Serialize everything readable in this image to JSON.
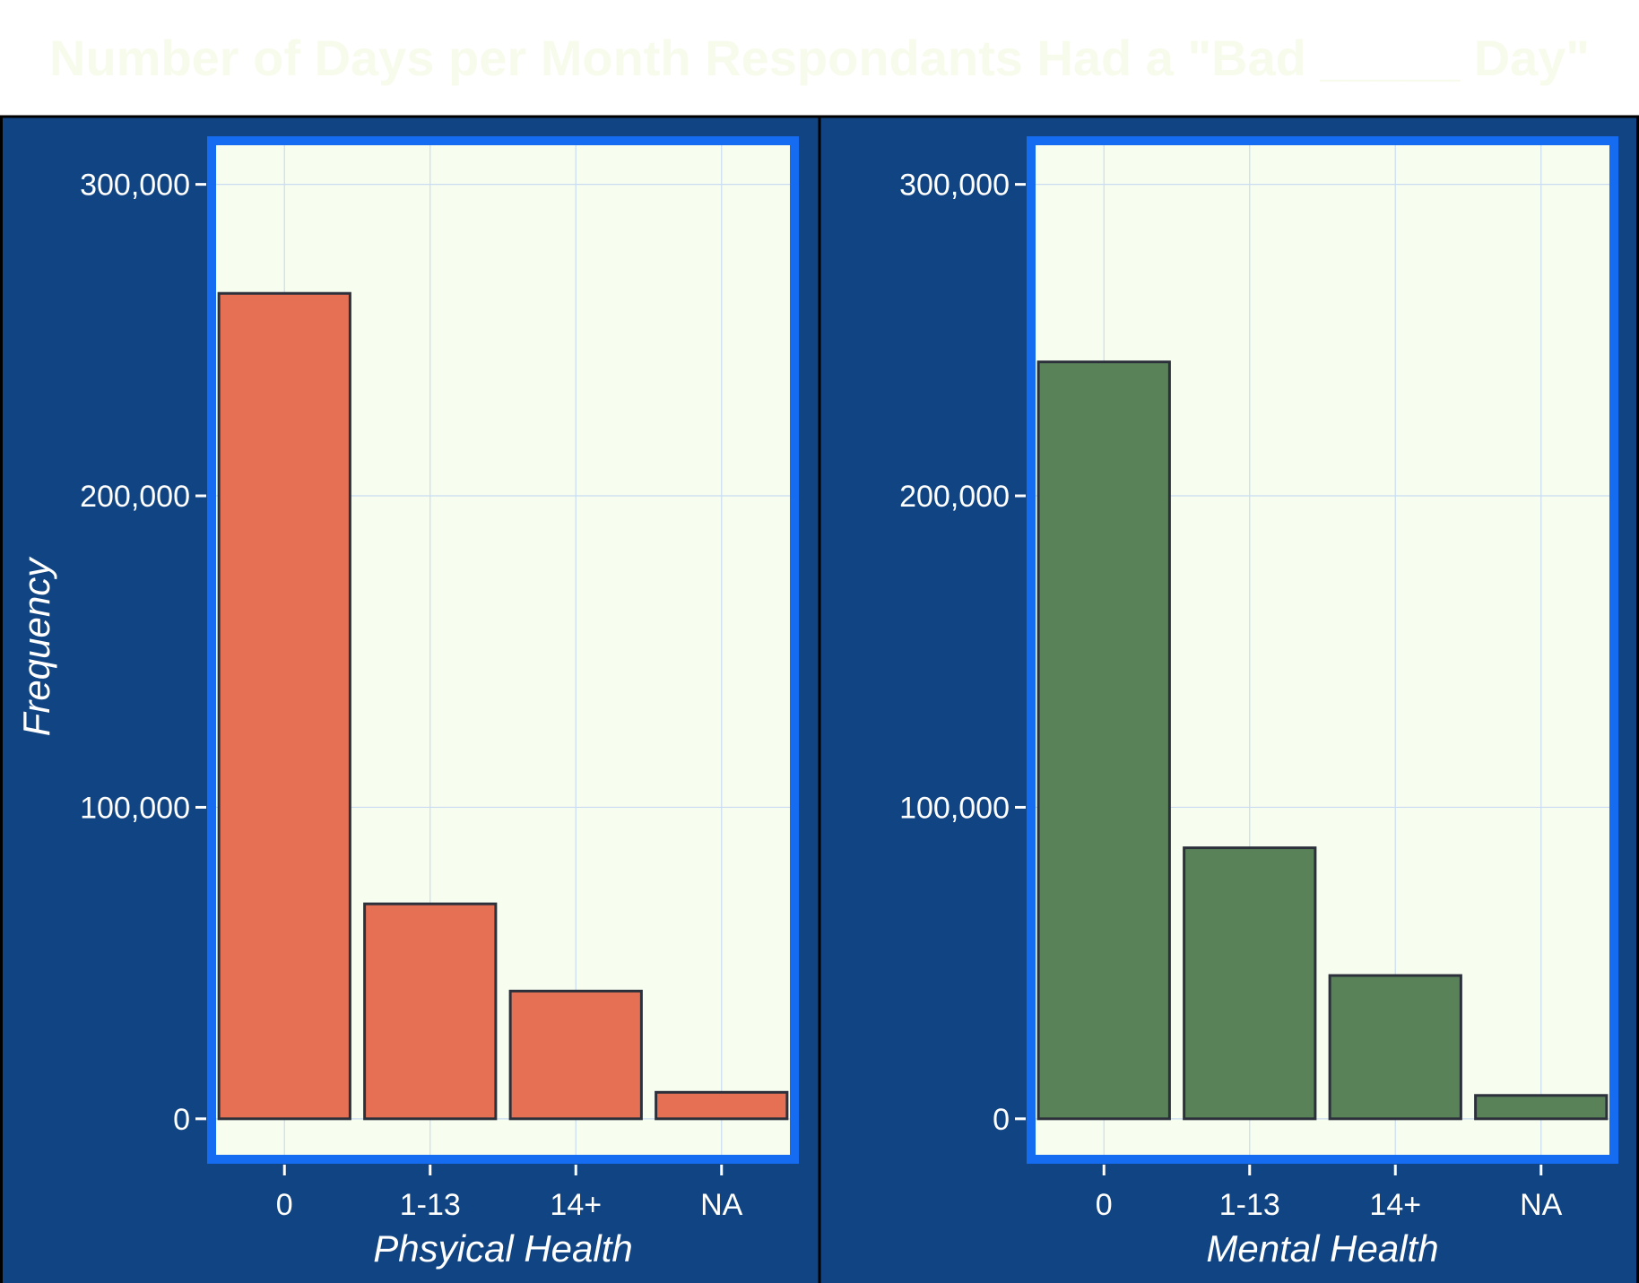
{
  "title": "Number of Days per Month Respondants Had a \"Bad _____ Day\"",
  "colors": {
    "page_background": "#ffffff",
    "title_text": "#f7fbec",
    "panel_background": "#114483",
    "plot_background": "#f7fdef",
    "plot_border": "#166cf0",
    "grid": "#c9dcf2",
    "axis_text": "#ffffff",
    "bar_outline": "#2b303b"
  },
  "chart_data": [
    {
      "type": "bar",
      "categories": [
        "0",
        "1-13",
        "14+",
        "NA"
      ],
      "values": [
        265000,
        69000,
        41000,
        8500
      ],
      "xlabel": "Phsyical Health",
      "ylabel": "Frequency",
      "ylim": [
        -13000,
        314000
      ],
      "yticks": [
        0,
        100000,
        200000,
        300000
      ],
      "ytick_labels": [
        "0",
        "100,000",
        "200,000",
        "300,000"
      ],
      "bar_color": "#e67053",
      "grid": true,
      "legend": "none"
    },
    {
      "type": "bar",
      "categories": [
        "0",
        "1-13",
        "14+",
        "NA"
      ],
      "values": [
        243000,
        87000,
        46000,
        7500
      ],
      "xlabel": "Mental Health",
      "ylabel": "",
      "ylim": [
        -13000,
        314000
      ],
      "yticks": [
        0,
        100000,
        200000,
        300000
      ],
      "ytick_labels": [
        "0",
        "100,000",
        "200,000",
        "300,000"
      ],
      "bar_color": "#5a8259",
      "grid": true,
      "legend": "none"
    }
  ]
}
